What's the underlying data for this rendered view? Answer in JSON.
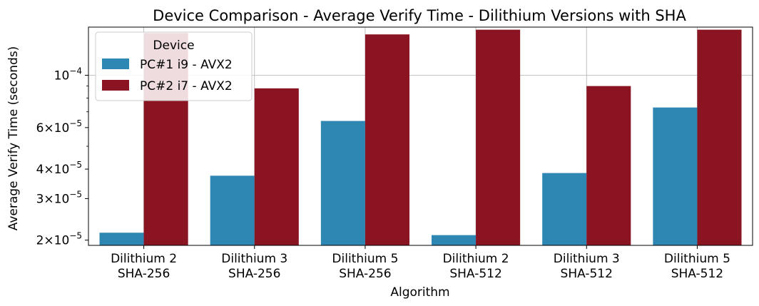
{
  "chart_data": {
    "type": "bar",
    "title": "Device Comparison - Average Verify Time - Dilithium Versions with SHA",
    "xlabel": "Algorithm",
    "ylabel": "Average Verify Time (seconds)",
    "y_scale": "log",
    "ylim": [
      1.9e-05,
      0.00016
    ],
    "grid": true,
    "legend": {
      "title": "Device",
      "placement": "top-left"
    },
    "categories": [
      [
        "Dilithium 2",
        "SHA-256"
      ],
      [
        "Dilithium 3",
        "SHA-256"
      ],
      [
        "Dilithium 5",
        "SHA-256"
      ],
      [
        "Dilithium 2",
        "SHA-512"
      ],
      [
        "Dilithium 3",
        "SHA-512"
      ],
      [
        "Dilithium 5",
        "SHA-512"
      ]
    ],
    "series": [
      {
        "name": "PC#1 i9 - AVX2",
        "color": "#2e86b3",
        "values": [
          2.15e-05,
          3.75e-05,
          6.4e-05,
          2.1e-05,
          3.85e-05,
          7.3e-05
        ]
      },
      {
        "name": "PC#2 i7 - AVX2",
        "color": "#8b1423",
        "values": [
          0.000151,
          8.8e-05,
          0.000149,
          0.000156,
          9e-05,
          0.000156
        ]
      }
    ],
    "y_ticks": [
      {
        "value": 2e-05,
        "mantissa": "2",
        "exponent": "−5"
      },
      {
        "value": 3e-05,
        "mantissa": "3",
        "exponent": "−5"
      },
      {
        "value": 4e-05,
        "mantissa": "4",
        "exponent": "−5"
      },
      {
        "value": 6e-05,
        "mantissa": "6",
        "exponent": "−5"
      },
      {
        "value": 0.0001,
        "mantissa": "",
        "exponent": "−4"
      }
    ],
    "y_minor_ticks": [
      5e-05,
      7e-05,
      8e-05,
      9e-05
    ]
  }
}
